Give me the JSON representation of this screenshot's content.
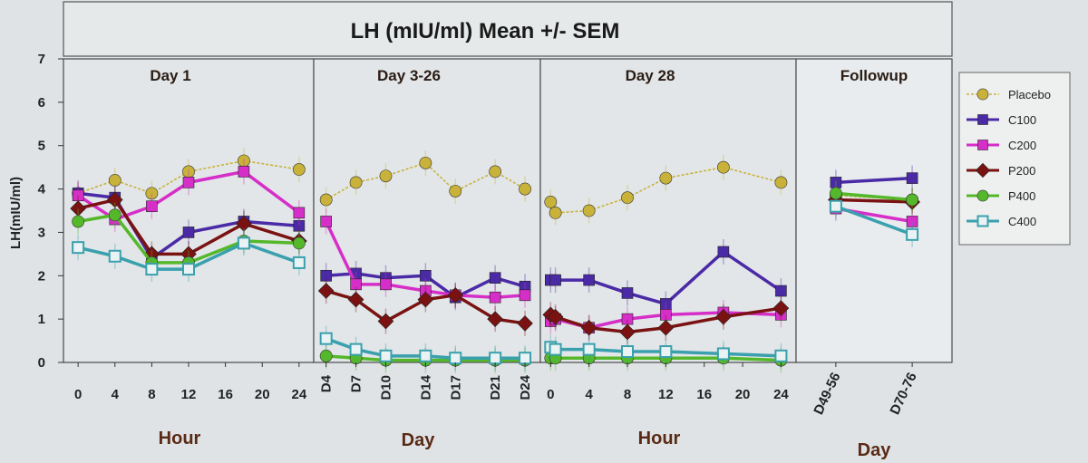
{
  "chart_data": {
    "type": "line",
    "title": "LH (mIU/ml) Mean +/- SEM",
    "ylabel": "LH(mIU/ml)",
    "ylim": [
      0,
      7
    ],
    "yticks": [
      "0",
      "1",
      "2",
      "3",
      "4",
      "5",
      "6",
      "7"
    ],
    "grid": false,
    "legend_position": "right",
    "series_styles": [
      {
        "name": "Placebo",
        "color": "#c9b23a",
        "marker": "circle"
      },
      {
        "name": "C100",
        "color": "#4b2aa6",
        "marker": "square"
      },
      {
        "name": "C200",
        "color": "#d62ec8",
        "marker": "square"
      },
      {
        "name": "P200",
        "color": "#7a1212",
        "marker": "diamond"
      },
      {
        "name": "P400",
        "color": "#54b82a",
        "marker": "circle"
      },
      {
        "name": "C400",
        "color": "#3aa0ad",
        "marker": "open-square"
      }
    ],
    "panels": [
      {
        "title": "Day 1",
        "xlabel": "Hour",
        "x": [
          0,
          4,
          8,
          12,
          18,
          24
        ],
        "xticks": [
          "0",
          "4",
          "8",
          "12",
          "16",
          "20",
          "24"
        ],
        "xtick_values": [
          0,
          4,
          8,
          12,
          16,
          20,
          24
        ],
        "xlim": [
          -1,
          25
        ],
        "tick_rotation": 0,
        "series": [
          {
            "name": "Placebo",
            "values": [
              3.9,
              4.2,
              3.9,
              4.4,
              4.65,
              4.45
            ]
          },
          {
            "name": "C100",
            "values": [
              3.9,
              3.8,
              2.4,
              3.0,
              3.25,
              3.15
            ]
          },
          {
            "name": "C200",
            "values": [
              3.85,
              3.3,
              3.6,
              4.15,
              4.4,
              3.45
            ]
          },
          {
            "name": "P200",
            "values": [
              3.55,
              3.75,
              2.5,
              2.5,
              3.2,
              2.8
            ]
          },
          {
            "name": "P400",
            "values": [
              3.25,
              3.4,
              2.3,
              2.3,
              2.8,
              2.75
            ]
          },
          {
            "name": "C400",
            "values": [
              2.65,
              2.45,
              2.15,
              2.15,
              2.75,
              2.3
            ]
          }
        ]
      },
      {
        "title": "Day 3-26",
        "xlabel": "Day",
        "x": [
          4,
          7,
          10,
          14,
          17,
          21,
          24
        ],
        "xticks": [
          "D4",
          "D7",
          "D10",
          "D14",
          "D17",
          "D21",
          "D24"
        ],
        "xtick_values": [
          4,
          7,
          10,
          14,
          17,
          21,
          24
        ],
        "xlim": [
          3.3,
          25
        ],
        "tick_rotation": -90,
        "series": [
          {
            "name": "Placebo",
            "values": [
              3.75,
              4.15,
              4.3,
              4.6,
              3.95,
              4.4,
              4.0
            ]
          },
          {
            "name": "C100",
            "values": [
              2.0,
              2.05,
              1.95,
              2.0,
              1.5,
              1.95,
              1.75
            ]
          },
          {
            "name": "C200",
            "values": [
              3.25,
              1.8,
              1.8,
              1.65,
              1.55,
              1.5,
              1.55
            ]
          },
          {
            "name": "P200",
            "values": [
              1.65,
              1.45,
              0.95,
              1.45,
              1.55,
              1.0,
              0.9
            ]
          },
          {
            "name": "P400",
            "values": [
              0.15,
              0.1,
              0.05,
              0.05,
              0.05,
              0.05,
              0.05
            ]
          },
          {
            "name": "C400",
            "values": [
              0.55,
              0.3,
              0.15,
              0.15,
              0.1,
              0.1,
              0.1
            ]
          }
        ]
      },
      {
        "title": "Day 28",
        "xlabel": "Hour",
        "x": [
          0,
          0.5,
          4,
          8,
          12,
          18,
          24
        ],
        "xticks": [
          "0",
          "4",
          "8",
          "12",
          "16",
          "20",
          "24"
        ],
        "xtick_values": [
          0,
          4,
          8,
          12,
          16,
          20,
          24
        ],
        "xlim": [
          -0.5,
          25
        ],
        "tick_rotation": 0,
        "series": [
          {
            "name": "Placebo",
            "values": [
              3.7,
              3.45,
              3.5,
              3.8,
              4.25,
              4.5,
              4.15
            ]
          },
          {
            "name": "C100",
            "values": [
              1.9,
              1.9,
              1.9,
              1.6,
              1.35,
              2.55,
              1.65
            ]
          },
          {
            "name": "C200",
            "values": [
              0.95,
              1.0,
              0.8,
              1.0,
              1.1,
              1.15,
              1.1
            ]
          },
          {
            "name": "P200",
            "values": [
              1.1,
              1.05,
              0.8,
              0.7,
              0.8,
              1.05,
              1.25
            ]
          },
          {
            "name": "P400",
            "values": [
              0.1,
              0.1,
              0.1,
              0.1,
              0.1,
              0.1,
              0.05
            ]
          },
          {
            "name": "C400",
            "values": [
              0.35,
              0.3,
              0.3,
              0.25,
              0.25,
              0.2,
              0.15
            ]
          }
        ]
      },
      {
        "title": "Followup",
        "xlabel": "Day",
        "x": [
          0,
          1
        ],
        "xticks": [
          "D49-56",
          "D70-76"
        ],
        "xtick_values": [
          0,
          1
        ],
        "xlim": [
          -0.45,
          1.45
        ],
        "tick_rotation": -65,
        "series": [
          {
            "name": "Placebo",
            "values": [
              3.85,
              3.75
            ]
          },
          {
            "name": "C100",
            "values": [
              4.15,
              4.25
            ]
          },
          {
            "name": "C200",
            "values": [
              3.55,
              3.25
            ]
          },
          {
            "name": "P200",
            "values": [
              3.75,
              3.7
            ]
          },
          {
            "name": "P400",
            "values": [
              3.9,
              3.75
            ]
          },
          {
            "name": "C400",
            "values": [
              3.6,
              2.95
            ]
          }
        ]
      }
    ]
  }
}
